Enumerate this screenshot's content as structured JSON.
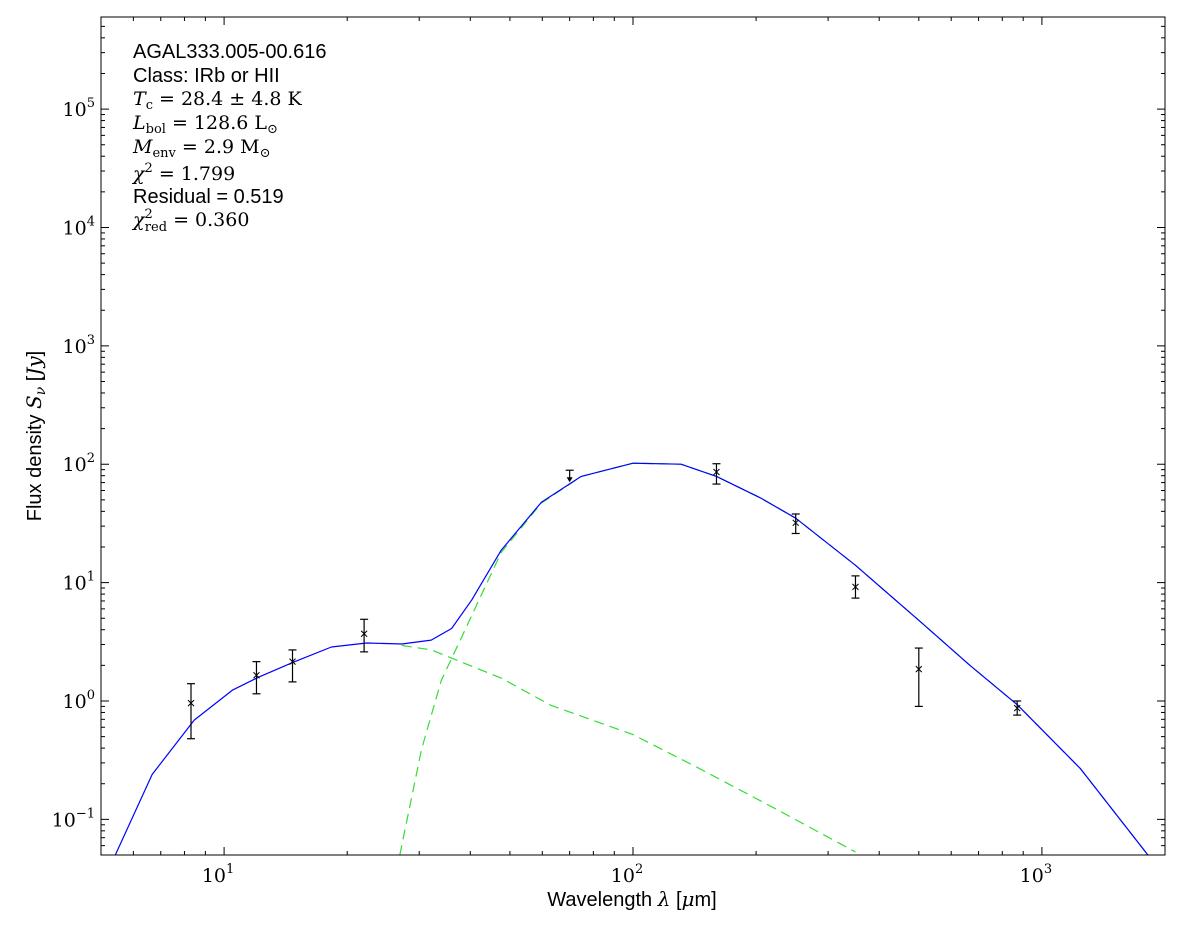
{
  "chart_data": {
    "type": "scatter",
    "xscale": "log",
    "yscale": "log",
    "xlim": [
      5,
      2000
    ],
    "ylim": [
      0.05,
      600000
    ],
    "grid": false,
    "xlabel": "Wavelength λ [μm]",
    "xlabel_parts": {
      "pre": "Wavelength ",
      "sym": "λ",
      "post": " [",
      "unit_sym": "μ",
      "unit": "m]"
    },
    "ylabel_parts": {
      "pre": "Flux density ",
      "sym": "S",
      "sub": "ν",
      "post": " [",
      "unit": "Jy",
      "close": "]"
    },
    "xticks": [
      {
        "base": "10",
        "exp": "1",
        "value": 10
      },
      {
        "base": "10",
        "exp": "2",
        "value": 100
      },
      {
        "base": "10",
        "exp": "3",
        "value": 1000
      }
    ],
    "yticks": [
      {
        "base": "10",
        "exp": "−1",
        "value": 0.1
      },
      {
        "base": "10",
        "exp": "0",
        "value": 1
      },
      {
        "base": "10",
        "exp": "1",
        "value": 10
      },
      {
        "base": "10",
        "exp": "2",
        "value": 100
      },
      {
        "base": "10",
        "exp": "3",
        "value": 1000
      },
      {
        "base": "10",
        "exp": "4",
        "value": 10000
      },
      {
        "base": "10",
        "exp": "5",
        "value": 100000
      }
    ],
    "annotation": {
      "source": "AGAL333.005-00.616",
      "class": "Class: IRb or HII",
      "tc": {
        "sym": "T",
        "sub": "c",
        "rest": " = 28.4 ± 4.8 K"
      },
      "lbol": {
        "sym": "L",
        "sub": "bol",
        "rest": " = 128.6 L",
        "rest_sub": "⊙"
      },
      "menv": {
        "sym": "M",
        "sub": "env",
        "rest": " = 2.9 M",
        "rest_sub": "⊙"
      },
      "chi2": {
        "sym": "χ",
        "sup": "2",
        "rest": " = 1.799"
      },
      "residual": "Residual = 0.519",
      "chi2red": {
        "sym": "χ",
        "sup": "2",
        "sub": "red",
        "rest": " = 0.360"
      }
    },
    "points": [
      {
        "x": 8.3,
        "y": 0.96,
        "ylo": 0.48,
        "yhi": 1.4
      },
      {
        "x": 12,
        "y": 1.65,
        "ylo": 1.15,
        "yhi": 2.15
      },
      {
        "x": 14.7,
        "y": 2.15,
        "ylo": 1.45,
        "yhi": 2.7
      },
      {
        "x": 22,
        "y": 3.7,
        "ylo": 2.6,
        "yhi": 4.9
      },
      {
        "x": 160,
        "y": 86,
        "ylo": 68,
        "yhi": 101
      },
      {
        "x": 250,
        "y": 32,
        "ylo": 26,
        "yhi": 38
      },
      {
        "x": 350,
        "y": 9.2,
        "ylo": 7.4,
        "yhi": 11.4
      },
      {
        "x": 500,
        "y": 1.86,
        "ylo": 0.9,
        "yhi": 2.8
      },
      {
        "x": 870,
        "y": 0.87,
        "ylo": 0.76,
        "yhi": 1.0
      }
    ],
    "upper_limits": [
      {
        "x": 70,
        "y": 89
      }
    ],
    "series": [
      {
        "role": "total",
        "color": "#0000ff",
        "style": "solid",
        "x": [
          5.42,
          6.67,
          8.45,
          10.5,
          12.2,
          14.8,
          18.3,
          22.3,
          27.2,
          32.1,
          36,
          40.3,
          47.6,
          59.7,
          74.7,
          100,
          131,
          160,
          205,
          250,
          350,
          500,
          667,
          870,
          1240,
          1816
        ],
        "y": [
          0.05,
          0.24,
          0.69,
          1.24,
          1.6,
          2.13,
          2.86,
          3.09,
          3.03,
          3.27,
          4.1,
          7.1,
          18.8,
          47.8,
          79,
          102,
          100,
          79,
          52,
          35,
          14,
          4.8,
          2.0,
          0.93,
          0.27,
          0.05
        ]
      },
      {
        "role": "cold",
        "color": "#33dd33",
        "style": "dashed",
        "x": [
          26.9,
          30.4,
          34,
          38,
          47.6,
          59.7,
          74.7,
          100,
          131,
          160,
          205,
          250,
          350,
          500,
          667,
          870,
          1240,
          1816
        ],
        "y": [
          0.05,
          0.39,
          1.5,
          3.4,
          18,
          47,
          79,
          102,
          100,
          79,
          52,
          35,
          14,
          4.8,
          2.0,
          0.93,
          0.27,
          0.05
        ]
      },
      {
        "role": "warm",
        "color": "#33dd33",
        "style": "dashed",
        "x": [
          27.2,
          32.1,
          47.6,
          63,
          100,
          145,
          226,
          350
        ],
        "y": [
          2.95,
          2.7,
          1.56,
          0.92,
          0.52,
          0.27,
          0.12,
          0.053
        ]
      }
    ]
  }
}
